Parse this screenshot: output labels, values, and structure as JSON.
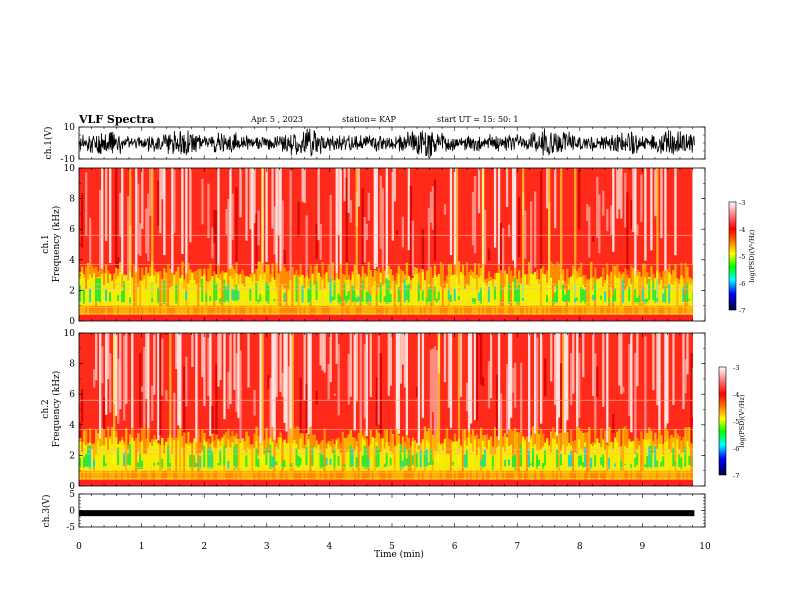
{
  "header": {
    "title": "VLF Spectra",
    "date": "Apr. 5  , 2023",
    "station": "station= KAP",
    "start": "start  UT  =   15: 50: 1"
  },
  "chart_data": [
    {
      "type": "line",
      "id": "ch1-waveform",
      "ylabel": "ch.1(V)",
      "ylim": [
        -10,
        10
      ],
      "yticks": [
        "10",
        "-10"
      ],
      "xlim": [
        0,
        10
      ]
    },
    {
      "type": "heatmap",
      "id": "ch1-spectrogram",
      "ylabel_top": "ch.1",
      "ylabel": "Frequency  (kHz)",
      "ylim": [
        0,
        10
      ],
      "yticks": [
        "0",
        "2",
        "4",
        "6",
        "8",
        "10"
      ],
      "xlim": [
        0,
        10
      ],
      "data_end_min": 9.83,
      "colorbar": {
        "label": "log(PSD)(V²/Hz)",
        "range": [
          -7,
          -3
        ],
        "ticks": [
          "-3",
          "-4",
          "-5",
          "-6",
          "-7"
        ]
      }
    },
    {
      "type": "heatmap",
      "id": "ch2-spectrogram",
      "ylabel_top": "ch.2",
      "ylabel": "Frequency  (kHz)",
      "ylim": [
        0,
        10
      ],
      "yticks": [
        "0",
        "2",
        "4",
        "6",
        "8",
        "10"
      ],
      "xlim": [
        0,
        10
      ],
      "data_end_min": 9.83,
      "colorbar": {
        "label": "log(PSD)(V²/Hz)",
        "range": [
          -7,
          -3
        ],
        "ticks": [
          "-3",
          "-4",
          "-5",
          "-6",
          "-7"
        ]
      }
    },
    {
      "type": "line",
      "id": "ch3-waveform",
      "ylabel": "ch.3(V)",
      "ylim": [
        -5,
        5
      ],
      "yticks": [
        "5",
        "0",
        "-5"
      ],
      "xlim": [
        0,
        10
      ],
      "level_v": -0.8,
      "xlabel": "Time  (min)",
      "xticks": [
        "0",
        "1",
        "2",
        "3",
        "4",
        "5",
        "6",
        "7",
        "8",
        "9",
        "10"
      ]
    }
  ]
}
